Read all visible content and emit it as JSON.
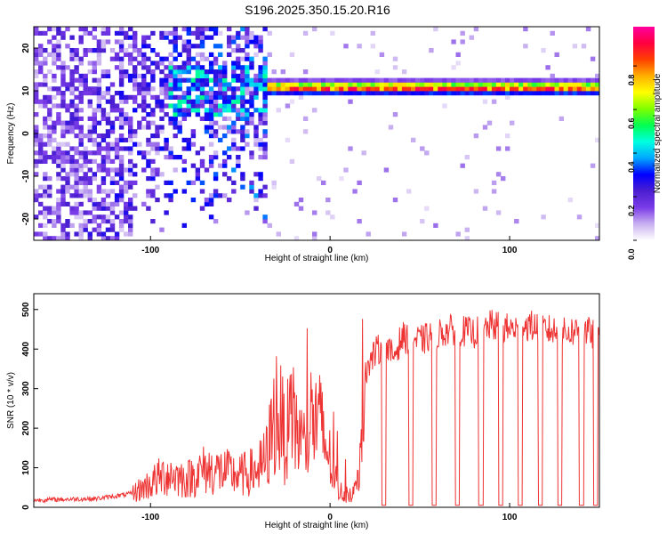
{
  "title": "S196.2025.350.15.20.R16",
  "chart_data": [
    {
      "type": "heatmap",
      "xlabel": "Height of straight line (km)",
      "ylabel": "Frequency (Hz)",
      "xlim": [
        -165,
        150
      ],
      "ylim": [
        -25,
        25
      ],
      "x_ticks": [
        -100,
        0,
        100
      ],
      "y_ticks": [
        -20,
        -10,
        0,
        10,
        20
      ],
      "colorbar": {
        "label": "Normalized spectral amplitude",
        "ticks": [
          "0.0",
          "0.2",
          "0.4",
          "0.6",
          "0.8"
        ],
        "tick_values": [
          0,
          0.2,
          0.4,
          0.6,
          0.8
        ],
        "range": [
          0,
          0.98
        ],
        "colors": [
          "#ffffff",
          "#c8b0f0",
          "#7a3be8",
          "#4b1fd0",
          "#0000ff",
          "#00a8ff",
          "#00ffe0",
          "#00ff50",
          "#7fff00",
          "#ffff00",
          "#ffb000",
          "#ff4000",
          "#ff0040",
          "#ff00a0"
        ]
      },
      "dominant_band": {
        "frequency_hz": 10.8,
        "x_range": [
          -35,
          150
        ],
        "peak_amplitude": 0.98
      },
      "broadband_noise_region": {
        "x_range": [
          -165,
          -30
        ],
        "frequency_range": [
          -25,
          25
        ],
        "amplitude_range": [
          0.05,
          0.4
        ]
      }
    },
    {
      "type": "line",
      "xlabel": "Height of straight line (km)",
      "ylabel": "SNR (10 * v/v)",
      "xlim": [
        -165,
        150
      ],
      "ylim": [
        0,
        540
      ],
      "x_ticks": [
        -100,
        0,
        100
      ],
      "y_ticks": [
        0,
        100,
        200,
        300,
        400,
        500
      ],
      "line_color": "#ee3333",
      "series": [
        {
          "x": [
            -165,
            -150,
            -130,
            -120,
            -110,
            -100,
            -95,
            -90,
            -80,
            -70,
            -60,
            -50,
            -40,
            -35,
            -30,
            -25,
            -20,
            -15,
            -10,
            -5,
            0,
            5,
            10,
            15,
            18,
            20,
            25,
            30,
            35,
            40,
            50,
            60,
            70,
            80,
            90,
            100,
            110,
            120,
            130,
            140,
            150
          ],
          "values": [
            18,
            20,
            22,
            28,
            35,
            60,
            75,
            85,
            70,
            95,
            90,
            80,
            95,
            130,
            250,
            180,
            220,
            150,
            230,
            200,
            120,
            40,
            35,
            45,
            290,
            350,
            390,
            410,
            380,
            430,
            420,
            440,
            450,
            440,
            460,
            450,
            460,
            450,
            440,
            450,
            430
          ]
        }
      ],
      "dropouts_x": [
        30,
        45,
        58,
        71,
        84,
        95,
        106,
        117,
        128,
        140,
        148
      ],
      "dropout_value": 5
    }
  ]
}
